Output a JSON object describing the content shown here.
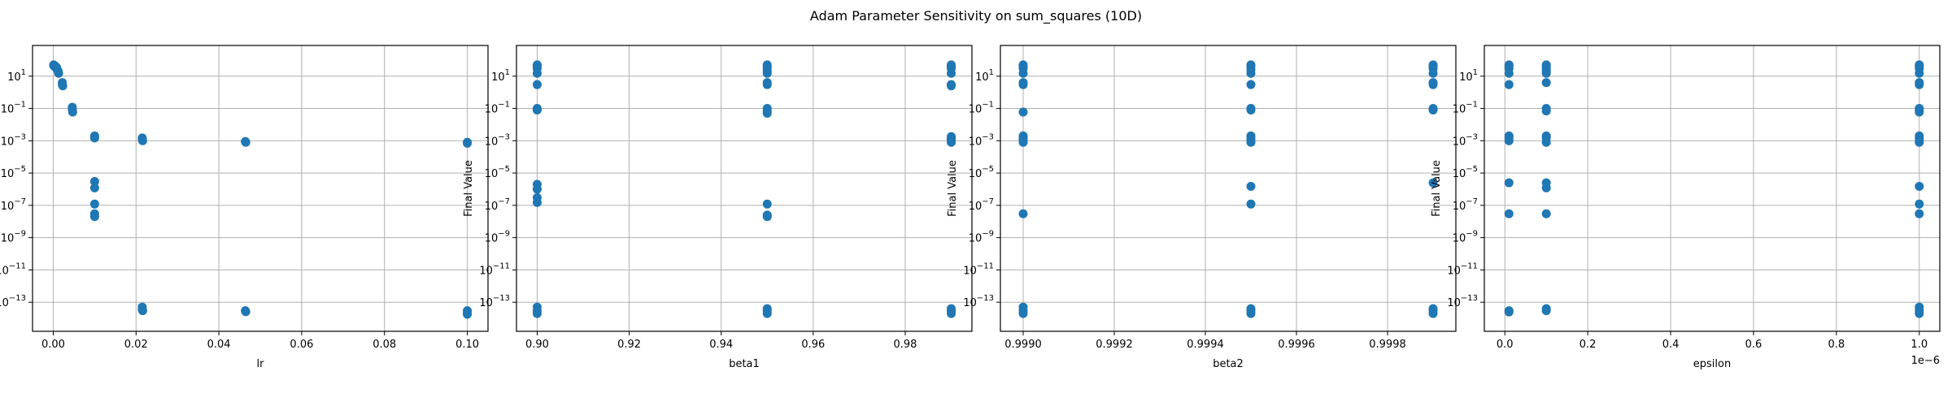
{
  "figure": {
    "title": "Adam Parameter Sensitivity on sum_squares (10D)"
  },
  "style": {
    "marker_color": "#1f77b4",
    "grid_color": "#b0b0b0"
  },
  "chart_data": [
    {
      "type": "scatter",
      "xlabel": "lr",
      "ylabel": "Final Value",
      "xscale": "linear",
      "yscale": "log",
      "xlim": [
        -0.005,
        0.105
      ],
      "ylim_exp": [
        -14.8,
        2.9
      ],
      "xticks": [
        0.0,
        0.02,
        0.04,
        0.06,
        0.08,
        0.1
      ],
      "xtick_labels": [
        "0.00",
        "0.02",
        "0.04",
        "0.06",
        "0.08",
        "0.10"
      ],
      "offset_text": "",
      "yticks_exp": [
        1,
        -1,
        -3,
        -5,
        -7,
        -9,
        -11,
        -13
      ],
      "grid": true,
      "points": [
        {
          "x": 0.0001,
          "y": 50
        },
        {
          "x": 0.0001,
          "y": 45
        },
        {
          "x": 0.0003,
          "y": 40
        },
        {
          "x": 0.0005,
          "y": 42
        },
        {
          "x": 0.0004,
          "y": 38
        },
        {
          "x": 0.0008,
          "y": 35
        },
        {
          "x": 0.001,
          "y": 25
        },
        {
          "x": 0.0012,
          "y": 20
        },
        {
          "x": 0.0013,
          "y": 15
        },
        {
          "x": 0.0022,
          "y": 4
        },
        {
          "x": 0.0022,
          "y": 3
        },
        {
          "x": 0.0023,
          "y": 2.5
        },
        {
          "x": 0.0046,
          "y": 0.12
        },
        {
          "x": 0.0046,
          "y": 0.09
        },
        {
          "x": 0.0047,
          "y": 0.06
        },
        {
          "x": 0.01,
          "y": 0.002
        },
        {
          "x": 0.01,
          "y": 0.0018
        },
        {
          "x": 0.01,
          "y": 0.0015
        },
        {
          "x": 0.01,
          "y": 3e-06
        },
        {
          "x": 0.01,
          "y": 1.2e-06
        },
        {
          "x": 0.01,
          "y": 1.2e-07
        },
        {
          "x": 0.01,
          "y": 3e-08
        },
        {
          "x": 0.01,
          "y": 2e-08
        },
        {
          "x": 0.0215,
          "y": 0.0015
        },
        {
          "x": 0.0215,
          "y": 0.0012
        },
        {
          "x": 0.0216,
          "y": 0.001
        },
        {
          "x": 0.0215,
          "y": 5e-14
        },
        {
          "x": 0.0215,
          "y": 3.5e-14
        },
        {
          "x": 0.0216,
          "y": 3e-14
        },
        {
          "x": 0.0464,
          "y": 0.0009
        },
        {
          "x": 0.0465,
          "y": 0.0008
        },
        {
          "x": 0.0464,
          "y": 3e-14
        },
        {
          "x": 0.0465,
          "y": 2.6e-14
        },
        {
          "x": 0.1,
          "y": 0.0008
        },
        {
          "x": 0.1,
          "y": 0.0007
        },
        {
          "x": 0.1,
          "y": 3e-14
        },
        {
          "x": 0.1,
          "y": 2.2e-14
        },
        {
          "x": 0.1,
          "y": 1.8e-14
        }
      ]
    },
    {
      "type": "scatter",
      "xlabel": "beta1",
      "ylabel": "Final Value",
      "xscale": "linear",
      "yscale": "log",
      "xlim": [
        0.8955,
        0.9945
      ],
      "ylim_exp": [
        -14.8,
        2.9
      ],
      "xticks": [
        0.9,
        0.92,
        0.94,
        0.96,
        0.98
      ],
      "xtick_labels": [
        "0.90",
        "0.92",
        "0.94",
        "0.96",
        "0.98"
      ],
      "offset_text": "",
      "yticks_exp": [
        1,
        -1,
        -3,
        -5,
        -7,
        -9,
        -11,
        -13
      ],
      "grid": true,
      "points": [
        {
          "x": 0.9,
          "y": 50
        },
        {
          "x": 0.9,
          "y": 40
        },
        {
          "x": 0.9,
          "y": 30
        },
        {
          "x": 0.9,
          "y": 15
        },
        {
          "x": 0.9,
          "y": 3
        },
        {
          "x": 0.9,
          "y": 0.1
        },
        {
          "x": 0.9,
          "y": 0.08
        },
        {
          "x": 0.9,
          "y": 2e-06
        },
        {
          "x": 0.9,
          "y": 1e-06
        },
        {
          "x": 0.9,
          "y": 3e-07
        },
        {
          "x": 0.9,
          "y": 1.5e-07
        },
        {
          "x": 0.9,
          "y": 5e-14
        },
        {
          "x": 0.9,
          "y": 3e-14
        },
        {
          "x": 0.9,
          "y": 2e-14
        },
        {
          "x": 0.95,
          "y": 50
        },
        {
          "x": 0.95,
          "y": 40
        },
        {
          "x": 0.95,
          "y": 30
        },
        {
          "x": 0.95,
          "y": 20
        },
        {
          "x": 0.95,
          "y": 15
        },
        {
          "x": 0.95,
          "y": 4
        },
        {
          "x": 0.95,
          "y": 3
        },
        {
          "x": 0.95,
          "y": 0.1
        },
        {
          "x": 0.95,
          "y": 0.07
        },
        {
          "x": 0.95,
          "y": 0.05
        },
        {
          "x": 0.95,
          "y": 1.2e-07
        },
        {
          "x": 0.95,
          "y": 2.5e-08
        },
        {
          "x": 0.95,
          "y": 2e-08
        },
        {
          "x": 0.95,
          "y": 4e-14
        },
        {
          "x": 0.95,
          "y": 3e-14
        },
        {
          "x": 0.95,
          "y": 2e-14
        },
        {
          "x": 0.99,
          "y": 50
        },
        {
          "x": 0.99,
          "y": 40
        },
        {
          "x": 0.99,
          "y": 30
        },
        {
          "x": 0.99,
          "y": 15
        },
        {
          "x": 0.99,
          "y": 3
        },
        {
          "x": 0.99,
          "y": 2.5
        },
        {
          "x": 0.99,
          "y": 0.0018
        },
        {
          "x": 0.99,
          "y": 0.0015
        },
        {
          "x": 0.99,
          "y": 0.0012
        },
        {
          "x": 0.99,
          "y": 0.001
        },
        {
          "x": 0.99,
          "y": 0.0008
        },
        {
          "x": 0.99,
          "y": 4e-14
        },
        {
          "x": 0.99,
          "y": 3e-14
        },
        {
          "x": 0.99,
          "y": 2e-14
        }
      ]
    },
    {
      "type": "scatter",
      "xlabel": "beta2",
      "ylabel": "Final Value",
      "xscale": "linear",
      "yscale": "log",
      "xlim": [
        0.99895,
        0.99995
      ],
      "ylim_exp": [
        -14.8,
        2.9
      ],
      "xticks": [
        0.999,
        0.9992,
        0.9994,
        0.9996,
        0.9998
      ],
      "xtick_labels": [
        "0.9990",
        "0.9992",
        "0.9994",
        "0.9996",
        "0.9998"
      ],
      "offset_text": "",
      "yticks_exp": [
        1,
        -1,
        -3,
        -5,
        -7,
        -9,
        -11,
        -13
      ],
      "grid": true,
      "points": [
        {
          "x": 0.999,
          "y": 50
        },
        {
          "x": 0.999,
          "y": 40
        },
        {
          "x": 0.999,
          "y": 30
        },
        {
          "x": 0.999,
          "y": 15
        },
        {
          "x": 0.999,
          "y": 4
        },
        {
          "x": 0.999,
          "y": 3
        },
        {
          "x": 0.999,
          "y": 0.06
        },
        {
          "x": 0.999,
          "y": 0.002
        },
        {
          "x": 0.999,
          "y": 0.0015
        },
        {
          "x": 0.999,
          "y": 0.0012
        },
        {
          "x": 0.999,
          "y": 0.001
        },
        {
          "x": 0.999,
          "y": 0.0008
        },
        {
          "x": 0.999,
          "y": 3e-08
        },
        {
          "x": 0.999,
          "y": 5e-14
        },
        {
          "x": 0.999,
          "y": 3e-14
        },
        {
          "x": 0.999,
          "y": 2e-14
        },
        {
          "x": 0.9995,
          "y": 50
        },
        {
          "x": 0.9995,
          "y": 40
        },
        {
          "x": 0.9995,
          "y": 25
        },
        {
          "x": 0.9995,
          "y": 15
        },
        {
          "x": 0.9995,
          "y": 3
        },
        {
          "x": 0.9995,
          "y": 0.1
        },
        {
          "x": 0.9995,
          "y": 0.08
        },
        {
          "x": 0.9995,
          "y": 0.002
        },
        {
          "x": 0.9995,
          "y": 0.0015
        },
        {
          "x": 0.9995,
          "y": 0.001
        },
        {
          "x": 0.9995,
          "y": 0.0008
        },
        {
          "x": 0.9995,
          "y": 1.5e-06
        },
        {
          "x": 0.9995,
          "y": 1.2e-07
        },
        {
          "x": 0.9995,
          "y": 4e-14
        },
        {
          "x": 0.9995,
          "y": 3e-14
        },
        {
          "x": 0.9995,
          "y": 2e-14
        },
        {
          "x": 0.9999,
          "y": 50
        },
        {
          "x": 0.9999,
          "y": 40
        },
        {
          "x": 0.9999,
          "y": 30
        },
        {
          "x": 0.9999,
          "y": 15
        },
        {
          "x": 0.9999,
          "y": 4
        },
        {
          "x": 0.9999,
          "y": 3
        },
        {
          "x": 0.9999,
          "y": 0.1
        },
        {
          "x": 0.9999,
          "y": 0.08
        },
        {
          "x": 0.9999,
          "y": 2.5e-06
        },
        {
          "x": 0.9999,
          "y": 4e-14
        },
        {
          "x": 0.9999,
          "y": 3e-14
        },
        {
          "x": 0.9999,
          "y": 2e-14
        }
      ]
    },
    {
      "type": "scatter",
      "xlabel": "epsilon",
      "ylabel": "Final Value",
      "xscale": "linear",
      "yscale": "log",
      "xlim": [
        -0.0495,
        1.0495
      ],
      "ylim_exp": [
        -14.8,
        2.9
      ],
      "xticks": [
        0.0,
        0.2,
        0.4,
        0.6,
        0.8,
        1.0
      ],
      "xtick_labels": [
        "0.0",
        "0.2",
        "0.4",
        "0.6",
        "0.8",
        "1.0"
      ],
      "offset_text": "1e−6",
      "yticks_exp": [
        1,
        -1,
        -3,
        -5,
        -7,
        -9,
        -11,
        -13
      ],
      "grid": true,
      "points": [
        {
          "x": 0.01,
          "y": 50
        },
        {
          "x": 0.01,
          "y": 40
        },
        {
          "x": 0.01,
          "y": 30
        },
        {
          "x": 0.01,
          "y": 15
        },
        {
          "x": 0.01,
          "y": 3
        },
        {
          "x": 0.01,
          "y": 0.002
        },
        {
          "x": 0.01,
          "y": 0.0015
        },
        {
          "x": 0.01,
          "y": 0.001
        },
        {
          "x": 0.01,
          "y": 2.5e-06
        },
        {
          "x": 0.01,
          "y": 3e-08
        },
        {
          "x": 0.01,
          "y": 3e-14
        },
        {
          "x": 0.01,
          "y": 2.5e-14
        },
        {
          "x": 0.1,
          "y": 50
        },
        {
          "x": 0.1,
          "y": 40
        },
        {
          "x": 0.1,
          "y": 30
        },
        {
          "x": 0.1,
          "y": 20
        },
        {
          "x": 0.1,
          "y": 15
        },
        {
          "x": 0.1,
          "y": 4
        },
        {
          "x": 0.1,
          "y": 0.1
        },
        {
          "x": 0.1,
          "y": 0.07
        },
        {
          "x": 0.1,
          "y": 0.002
        },
        {
          "x": 0.1,
          "y": 0.0015
        },
        {
          "x": 0.1,
          "y": 0.0008
        },
        {
          "x": 0.1,
          "y": 2.5e-06
        },
        {
          "x": 0.1,
          "y": 1.2e-06
        },
        {
          "x": 0.1,
          "y": 3e-08
        },
        {
          "x": 0.1,
          "y": 4e-14
        },
        {
          "x": 0.1,
          "y": 3e-14
        },
        {
          "x": 1.0,
          "y": 50
        },
        {
          "x": 1.0,
          "y": 40
        },
        {
          "x": 1.0,
          "y": 30
        },
        {
          "x": 1.0,
          "y": 15
        },
        {
          "x": 1.0,
          "y": 4
        },
        {
          "x": 1.0,
          "y": 3
        },
        {
          "x": 1.0,
          "y": 0.1
        },
        {
          "x": 1.0,
          "y": 0.08
        },
        {
          "x": 1.0,
          "y": 0.06
        },
        {
          "x": 1.0,
          "y": 0.002
        },
        {
          "x": 1.0,
          "y": 0.0015
        },
        {
          "x": 1.0,
          "y": 0.001
        },
        {
          "x": 1.0,
          "y": 0.0008
        },
        {
          "x": 1.0,
          "y": 1.5e-06
        },
        {
          "x": 1.0,
          "y": 1.2e-07
        },
        {
          "x": 1.0,
          "y": 3e-08
        },
        {
          "x": 1.0,
          "y": 5e-14
        },
        {
          "x": 1.0,
          "y": 3e-14
        },
        {
          "x": 1.0,
          "y": 2e-14
        }
      ]
    }
  ]
}
